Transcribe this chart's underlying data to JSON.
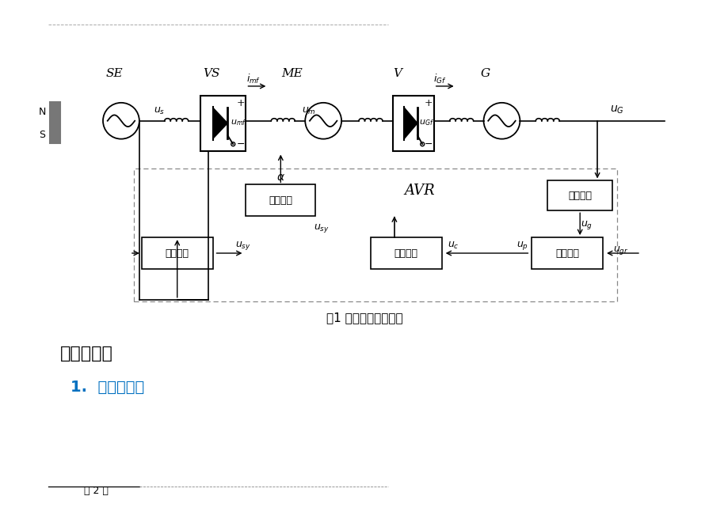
{
  "bg_color": "#ffffff",
  "fig_width": 9.2,
  "fig_height": 6.51,
  "title_line": "图1 励磁控制系统结构",
  "header_text": "解析法建模",
  "subheader_text": "1.  同步发电机",
  "footer_text": "第 2 页",
  "box_labels": {
    "yixiang": "移相触发",
    "tongbu": "同步电路",
    "chuanlian": "串联校正",
    "bijiao": "比较放大",
    "dianya": "电压测量"
  }
}
